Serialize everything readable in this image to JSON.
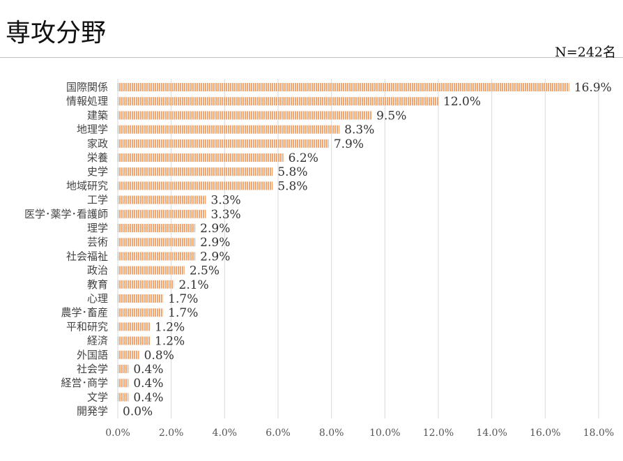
{
  "header": {
    "title": "専攻分野",
    "n": "N=242名"
  },
  "chart_data": {
    "type": "bar",
    "orientation": "horizontal",
    "title": "専攻分野",
    "annotation": "N=242名",
    "categories": [
      "国際関係",
      "情報処理",
      "建築",
      "地理学",
      "家政",
      "栄養",
      "史学",
      "地域研究",
      "工学",
      "医学･薬学･看護師",
      "理学",
      "芸術",
      "社会福祉",
      "政治",
      "教育",
      "心理",
      "農学･畜産",
      "平和研究",
      "経済",
      "外国語",
      "社会学",
      "経営･商学",
      "文学",
      "開発学"
    ],
    "values": [
      16.9,
      12.0,
      9.5,
      8.3,
      7.9,
      6.2,
      5.8,
      5.8,
      3.3,
      3.3,
      2.9,
      2.9,
      2.9,
      2.5,
      2.1,
      1.7,
      1.7,
      1.2,
      1.2,
      0.8,
      0.4,
      0.4,
      0.4,
      0.0
    ],
    "value_labels": [
      "16.9%",
      "12.0%",
      "9.5%",
      "8.3%",
      "7.9%",
      "6.2%",
      "5.8%",
      "5.8%",
      "3.3%",
      "3.3%",
      "2.9%",
      "2.9%",
      "2.9%",
      "2.5%",
      "2.1%",
      "1.7%",
      "1.7%",
      "1.2%",
      "1.2%",
      "0.8%",
      "0.4%",
      "0.4%",
      "0.4%",
      "0.0%"
    ],
    "xticks": [
      0,
      2,
      4,
      6,
      8,
      10,
      12,
      14,
      16,
      18
    ],
    "xtick_labels": [
      "0.0%",
      "2.0%",
      "4.0%",
      "6.0%",
      "8.0%",
      "10.0%",
      "12.0%",
      "14.0%",
      "16.0%",
      "18.0%"
    ],
    "xlim": [
      0,
      18
    ],
    "xlabel": "",
    "ylabel": "",
    "grid": true,
    "colors": {
      "bar": "#f4a46e",
      "bar_stripe": "#ffffff",
      "grid": "#d9d9d9"
    }
  }
}
